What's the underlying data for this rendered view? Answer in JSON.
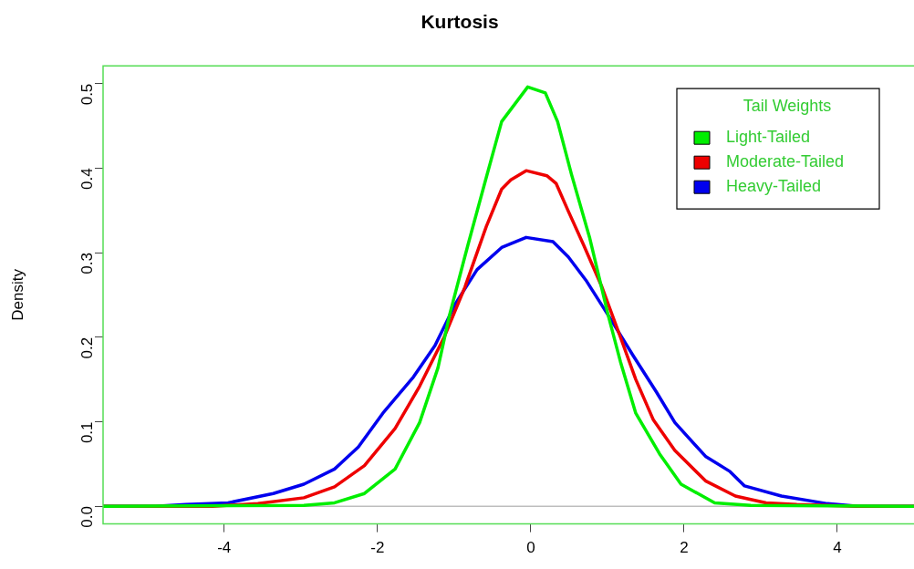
{
  "chart_data": {
    "type": "line",
    "title": "Kurtosis",
    "ylabel": "Density",
    "legend_title": "Tail Weights",
    "legend": "top right",
    "xlim": [
      -5.58,
      5.0
    ],
    "xticks": [
      -4,
      -2,
      0,
      2,
      4
    ],
    "ylim": [
      -0.021,
      0.521
    ],
    "yticks": [
      {
        "value": 0,
        "label": "0.0"
      },
      0.1,
      0.2,
      0.3,
      0.4,
      0.5
    ],
    "grid": false,
    "marker": "none",
    "line_style": "solid",
    "ref_lines": [
      {
        "axis": "y",
        "value": 0,
        "color": "#bebebe"
      }
    ],
    "series": [
      {
        "name": "Light-Tailed",
        "color": "#00ee00",
        "x": [
          -5.58,
          -2.96,
          -2.56,
          -2.17,
          -1.77,
          -1.45,
          -1.21,
          -1.06,
          -0.82,
          -0.58,
          -0.38,
          -0.04,
          0.19,
          0.35,
          0.53,
          0.77,
          1.01,
          1.17,
          1.37,
          1.68,
          1.96,
          2.4,
          2.87,
          5.0
        ],
        "values": [
          0,
          0.001,
          0.004,
          0.015,
          0.044,
          0.099,
          0.164,
          0.226,
          0.309,
          0.389,
          0.455,
          0.496,
          0.489,
          0.455,
          0.393,
          0.317,
          0.226,
          0.171,
          0.11,
          0.062,
          0.026,
          0.004,
          0.001,
          0
        ]
      },
      {
        "name": "Moderate-Tailed",
        "color": "#ee0000",
        "x": [
          -5.58,
          -4.15,
          -3.56,
          -2.96,
          -2.56,
          -2.17,
          -1.77,
          -1.45,
          -1.13,
          -0.86,
          -0.58,
          -0.38,
          -0.26,
          -0.06,
          0.21,
          0.33,
          0.49,
          0.69,
          0.93,
          1.17,
          1.37,
          1.6,
          1.88,
          2.28,
          2.67,
          3.07,
          3.47,
          4.27,
          5.0
        ],
        "values": [
          0,
          0,
          0.003,
          0.01,
          0.023,
          0.048,
          0.092,
          0.142,
          0.2,
          0.259,
          0.331,
          0.375,
          0.386,
          0.397,
          0.391,
          0.382,
          0.349,
          0.309,
          0.259,
          0.2,
          0.15,
          0.102,
          0.066,
          0.03,
          0.012,
          0.004,
          0.002,
          0,
          0
        ]
      },
      {
        "name": "Heavy-Tailed",
        "color": "#0000ee",
        "x": [
          -5.58,
          -4.9,
          -4.5,
          -3.95,
          -3.36,
          -2.96,
          -2.56,
          -2.25,
          -1.93,
          -1.53,
          -1.25,
          -0.98,
          -0.7,
          -0.38,
          -0.3,
          -0.06,
          0.29,
          0.49,
          0.73,
          1.01,
          1.33,
          1.64,
          1.88,
          2.28,
          2.6,
          2.79,
          3.27,
          3.87,
          4.27,
          5.0
        ],
        "values": [
          0,
          0,
          0.002,
          0.004,
          0.015,
          0.026,
          0.044,
          0.07,
          0.11,
          0.153,
          0.19,
          0.24,
          0.28,
          0.306,
          0.309,
          0.318,
          0.313,
          0.295,
          0.266,
          0.226,
          0.179,
          0.135,
          0.099,
          0.059,
          0.041,
          0.024,
          0.012,
          0.003,
          0,
          0
        ]
      }
    ]
  }
}
